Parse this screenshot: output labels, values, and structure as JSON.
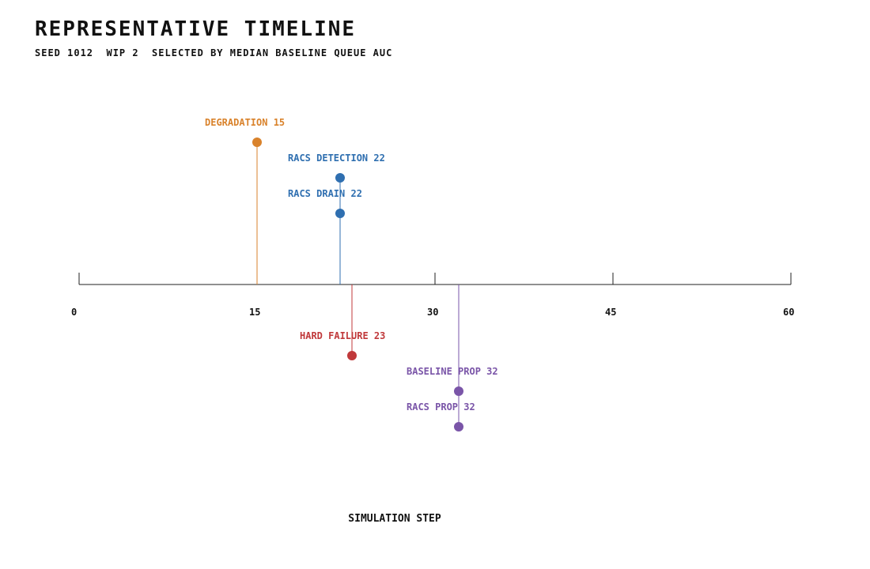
{
  "title": "REPRESENTATIVE TIMELINE",
  "subtitle": "SEED 1012  WIP 2  SELECTED BY MEDIAN BASELINE QUEUE AUC",
  "chart_data": {
    "type": "scatter",
    "subtype": "event-timeline",
    "xlabel": "SIMULATION STEP",
    "xlim": [
      0,
      60
    ],
    "x_ticks": [
      "0",
      "15",
      "30",
      "45",
      "60"
    ],
    "grid": false,
    "events": [
      {
        "label": "DEGRADATION 15",
        "step": 15,
        "side": "above",
        "level": 4,
        "color": "#d9822b"
      },
      {
        "label": "RACS DETECTION 22",
        "step": 22,
        "side": "above",
        "level": 3,
        "color": "#2f6fb0"
      },
      {
        "label": "RACS DRAIN 22",
        "step": 22,
        "side": "above",
        "level": 2,
        "color": "#2f6fb0"
      },
      {
        "label": "HARD FAILURE 23",
        "step": 23,
        "side": "below",
        "level": 2,
        "color": "#c0393b"
      },
      {
        "label": "BASELINE PROP 32",
        "step": 32,
        "side": "below",
        "level": 3,
        "color": "#7a55a8"
      },
      {
        "label": "RACS PROP 32",
        "step": 32,
        "side": "below",
        "level": 4,
        "color": "#7a55a8"
      }
    ]
  }
}
